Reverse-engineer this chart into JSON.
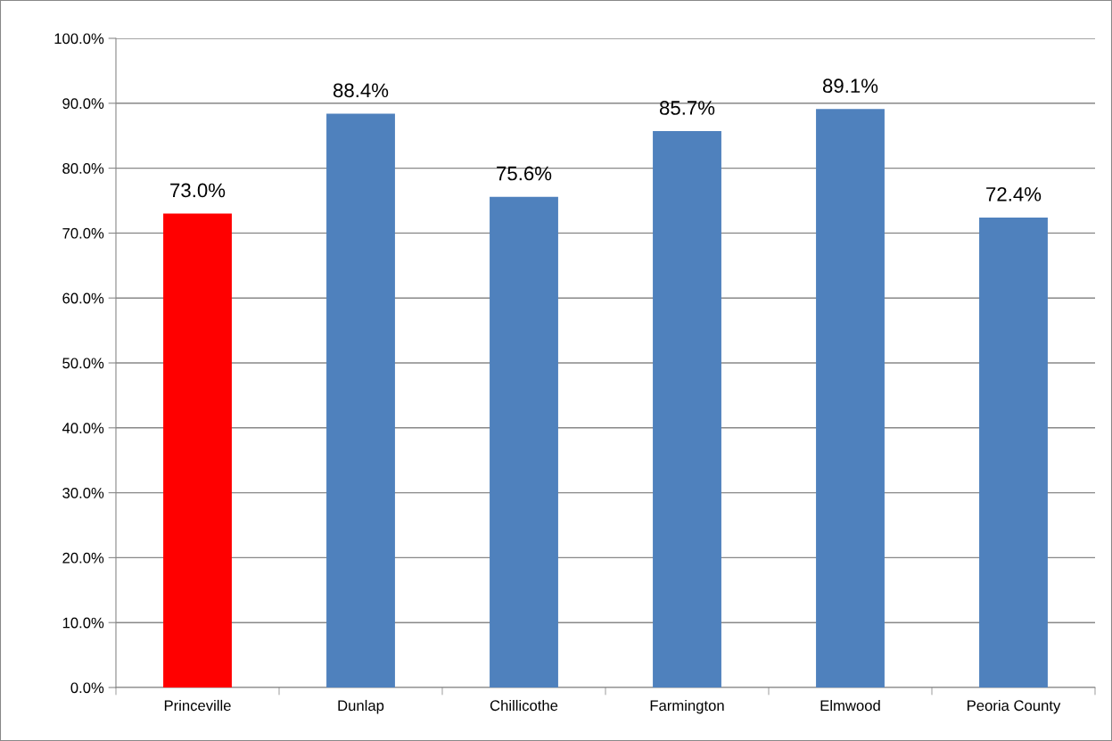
{
  "chart_data": {
    "type": "bar",
    "categories": [
      "Princeville",
      "Dunlap",
      "Chillicothe",
      "Farmington",
      "Elmwood",
      "Peoria County"
    ],
    "values": [
      73.0,
      88.4,
      75.6,
      85.7,
      89.1,
      72.4
    ],
    "colors": [
      "#ff0000",
      "#4f81bd",
      "#4f81bd",
      "#4f81bd",
      "#4f81bd",
      "#4f81bd"
    ],
    "value_labels": [
      "73.0%",
      "88.4%",
      "75.6%",
      "85.7%",
      "89.1%",
      "72.4%"
    ],
    "ylim": [
      0,
      100
    ],
    "yticks": [
      {
        "value": 0,
        "label": "0.0%"
      },
      {
        "value": 10,
        "label": "10.0%"
      },
      {
        "value": 20,
        "label": "20.0%"
      },
      {
        "value": 30,
        "label": "30.0%"
      },
      {
        "value": 40,
        "label": "40.0%"
      },
      {
        "value": 50,
        "label": "50.0%"
      },
      {
        "value": 60,
        "label": "60.0%"
      },
      {
        "value": 70,
        "label": "70.0%"
      },
      {
        "value": 80,
        "label": "80.0%"
      },
      {
        "value": 90,
        "label": "90.0%"
      },
      {
        "value": 100,
        "label": "100.0%"
      }
    ],
    "grid": "y",
    "legend": false
  }
}
